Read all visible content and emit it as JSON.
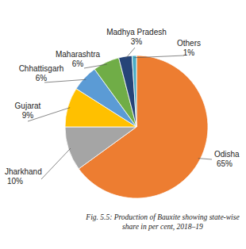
{
  "chart_data": {
    "type": "pie",
    "title": "Fig. 5.5: Production of Bauxite showing state-wise share in per cent, 2018–19",
    "categories": [
      "Odisha",
      "Jharkhand",
      "Gujarat",
      "Chhattisgarh",
      "Maharashtra",
      "Madhya Pradesh",
      "Others"
    ],
    "values": [
      65,
      10,
      9,
      6,
      6,
      3,
      1
    ],
    "value_labels": [
      "65%",
      "10%",
      "9%",
      "6%",
      "6%",
      "3%",
      "1%"
    ],
    "colors": [
      "#ed7d31",
      "#a5a5a5",
      "#ffc000",
      "#5b9bd5",
      "#70ad47",
      "#264478",
      "#4bacc6"
    ],
    "data_labels": true
  }
}
